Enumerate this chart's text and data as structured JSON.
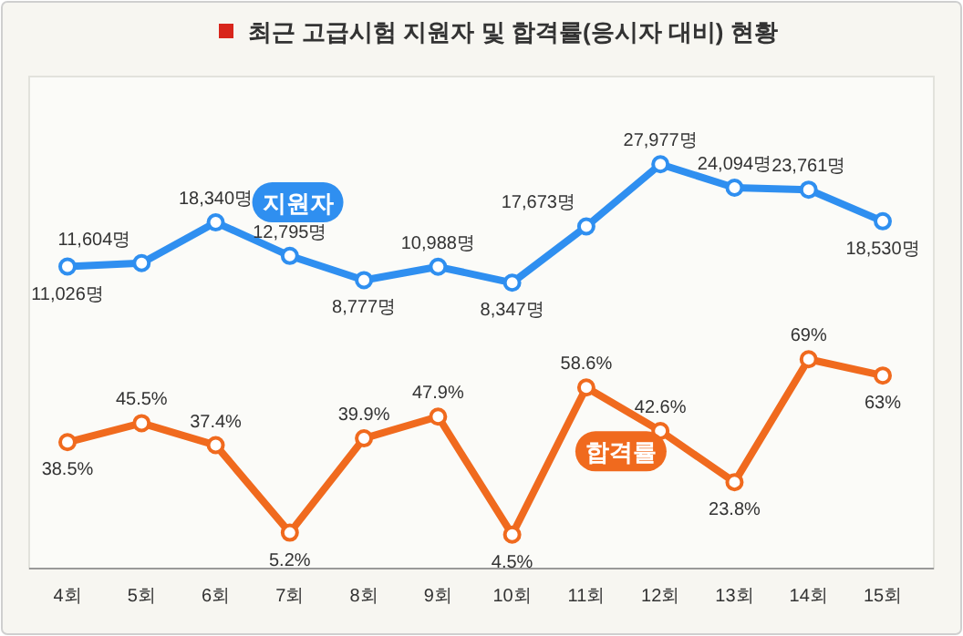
{
  "chart_data": {
    "type": "line",
    "title": "최근 고급시험 지원자 및 합격률(응시자 대비) 현황",
    "categories": [
      "4회",
      "5회",
      "6회",
      "7회",
      "8회",
      "9회",
      "10회",
      "11회",
      "12회",
      "13회",
      "14회",
      "15회"
    ],
    "series": [
      {
        "name": "지원자",
        "color": "#2f8ff0",
        "axis": "y",
        "values": [
          11026,
          11604,
          18340,
          12795,
          8777,
          10988,
          8347,
          17673,
          27977,
          24094,
          23761,
          18530
        ],
        "value_labels": [
          "11,026명",
          "11,604명",
          "18,340명",
          "12,795명",
          "8,777명",
          "10,988명",
          "8,347명",
          "17,673명",
          "27,977명",
          "24,094명",
          "23,761명",
          "18,530명"
        ]
      },
      {
        "name": "합격률",
        "color": "#f06a1e",
        "axis": "y2",
        "values": [
          38.5,
          45.5,
          37.4,
          5.2,
          39.9,
          47.9,
          4.5,
          58.6,
          42.6,
          23.8,
          69,
          63
        ],
        "value_labels": [
          "38.5%",
          "45.5%",
          "37.4%",
          "5.2%",
          "39.9%",
          "47.9%",
          "4.5%",
          "58.6%",
          "42.6%",
          "23.8%",
          "69%",
          "63%"
        ]
      }
    ],
    "ylim": [
      -39000,
      42500
    ],
    "y2lim": [
      -8,
      173
    ],
    "tick_labels": "x",
    "marker": "circle",
    "line_style": "solid",
    "legend": false
  }
}
